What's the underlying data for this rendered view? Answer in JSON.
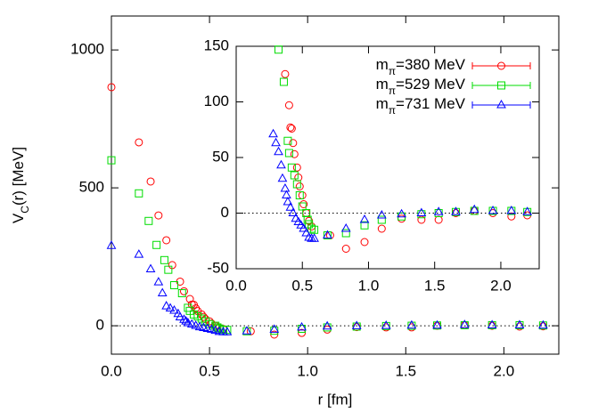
{
  "chart_data": [
    {
      "type": "scatter",
      "x_label": "r [fm]",
      "y_label_parts": [
        "V",
        "C",
        "(r) [MeV]"
      ],
      "xlim": [
        0,
        2.28
      ],
      "ylim": [
        -103,
        1123
      ],
      "xticks": [
        {
          "value": 0,
          "label": "0.0"
        },
        0.5,
        {
          "value": 1,
          "label": "1.0"
        },
        1.5,
        {
          "value": 2,
          "label": "2.0"
        }
      ],
      "yticks": [
        0,
        500,
        1000
      ],
      "zero_line": true,
      "series": [
        {
          "color": "#ff0000",
          "marker": "circle",
          "x": [
            0.0,
            0.14,
            0.2,
            0.24,
            0.28,
            0.31,
            0.35,
            0.37,
            0.4,
            0.41,
            0.42,
            0.43,
            0.44,
            0.46,
            0.47,
            0.48,
            0.5,
            0.51,
            0.53,
            0.55,
            0.57,
            0.71,
            0.83,
            0.97,
            1.1,
            1.25,
            1.4,
            1.53,
            1.66,
            1.8,
            1.94,
            2.08,
            2.2
          ],
          "values": [
            865,
            665,
            523,
            400,
            310,
            220,
            160,
            125,
            97,
            77,
            76,
            63,
            53,
            41,
            32,
            24,
            16,
            8,
            0,
            -7,
            -12,
            -20,
            -32,
            -26,
            -14,
            -5,
            -6,
            -6,
            0,
            2,
            0,
            -3,
            -2
          ]
        },
        {
          "color": "#00dd00",
          "marker": "square",
          "x": [
            0.0,
            0.14,
            0.19,
            0.23,
            0.27,
            0.29,
            0.32,
            0.36,
            0.39,
            0.4,
            0.42,
            0.44,
            0.46,
            0.48,
            0.5,
            0.53,
            0.54,
            0.55,
            0.57,
            0.59,
            0.69,
            0.83,
            0.97,
            1.1,
            1.25,
            1.4,
            1.53,
            1.66,
            1.8,
            1.94,
            2.08,
            2.2
          ],
          "values": [
            600,
            480,
            380,
            293,
            238,
            203,
            147,
            118,
            65,
            54,
            41,
            34,
            26,
            16,
            6,
            0,
            -6,
            -10,
            -14,
            -15,
            -20,
            -18,
            -11,
            -6,
            -3,
            -1,
            0,
            1,
            2,
            2,
            2,
            1
          ]
        },
        {
          "color": "#0000ff",
          "marker": "triangle",
          "x": [
            0.0,
            0.14,
            0.2,
            0.24,
            0.26,
            0.28,
            0.3,
            0.32,
            0.34,
            0.35,
            0.37,
            0.38,
            0.39,
            0.41,
            0.43,
            0.45,
            0.47,
            0.49,
            0.51,
            0.53,
            0.55,
            0.57,
            0.59,
            0.69,
            0.83,
            0.97,
            1.1,
            1.25,
            1.4,
            1.53,
            1.66,
            1.8,
            1.94,
            2.08,
            2.2
          ],
          "values": [
            290,
            258,
            205,
            158,
            118,
            71,
            63,
            55,
            43,
            31,
            22,
            16,
            10,
            5,
            0,
            -5,
            -8,
            -11,
            -14,
            -18,
            -22,
            -23,
            -23,
            -20,
            -14,
            -6,
            -2,
            -1,
            0,
            1,
            1,
            3,
            2,
            2,
            1
          ]
        }
      ]
    },
    {
      "type": "scatter",
      "xlim": [
        0,
        2.29
      ],
      "ylim": [
        -50,
        150
      ],
      "xticks": [
        {
          "value": 0,
          "label": "0.0"
        },
        0.5,
        {
          "value": 1,
          "label": "1.0"
        },
        1.5,
        {
          "value": 2,
          "label": "2.0"
        }
      ],
      "yticks": [
        -50,
        0,
        50,
        100,
        150
      ],
      "zero_line": true,
      "legend": "top-right",
      "series": [
        {
          "name_parts": [
            "m",
            "π",
            "=380 MeV"
          ],
          "color": "#ff0000",
          "marker": "circle",
          "x": [
            0.37,
            0.4,
            0.41,
            0.42,
            0.43,
            0.44,
            0.46,
            0.47,
            0.48,
            0.5,
            0.51,
            0.53,
            0.55,
            0.57,
            0.71,
            0.83,
            0.97,
            1.1,
            1.25,
            1.4,
            1.53,
            1.66,
            1.8,
            1.94,
            2.08,
            2.2
          ],
          "values": [
            125,
            97,
            77,
            76,
            63,
            53,
            41,
            32,
            24,
            16,
            8,
            0,
            -7,
            -12,
            -20,
            -32,
            -26,
            -14,
            -5,
            -6,
            -6,
            0,
            2,
            0,
            -3,
            -2
          ]
        },
        {
          "name_parts": [
            "m",
            "π",
            "=529 MeV"
          ],
          "color": "#00dd00",
          "marker": "square",
          "x": [
            0.32,
            0.36,
            0.39,
            0.4,
            0.42,
            0.44,
            0.46,
            0.48,
            0.5,
            0.53,
            0.54,
            0.55,
            0.57,
            0.59,
            0.69,
            0.83,
            0.97,
            1.1,
            1.25,
            1.4,
            1.53,
            1.66,
            1.8,
            1.94,
            2.08,
            2.2
          ],
          "values": [
            147,
            118,
            65,
            54,
            41,
            34,
            26,
            16,
            6,
            0,
            -6,
            -10,
            -14,
            -15,
            -20,
            -18,
            -11,
            -6,
            -3,
            -1,
            0,
            1,
            2,
            2,
            2,
            1
          ]
        },
        {
          "name_parts": [
            "m",
            "π",
            "=731 MeV"
          ],
          "color": "#0000ff",
          "marker": "triangle",
          "x": [
            0.28,
            0.3,
            0.32,
            0.34,
            0.35,
            0.37,
            0.38,
            0.39,
            0.41,
            0.43,
            0.45,
            0.47,
            0.49,
            0.51,
            0.53,
            0.55,
            0.57,
            0.59,
            0.69,
            0.83,
            0.97,
            1.1,
            1.25,
            1.4,
            1.53,
            1.66,
            1.8,
            1.94,
            2.08,
            2.2
          ],
          "values": [
            71,
            63,
            55,
            43,
            31,
            22,
            16,
            10,
            5,
            0,
            -5,
            -8,
            -11,
            -14,
            -18,
            -22,
            -23,
            -23,
            -20,
            -14,
            -6,
            -2,
            -1,
            0,
            1,
            1,
            3,
            2,
            2,
            1
          ]
        }
      ]
    }
  ]
}
